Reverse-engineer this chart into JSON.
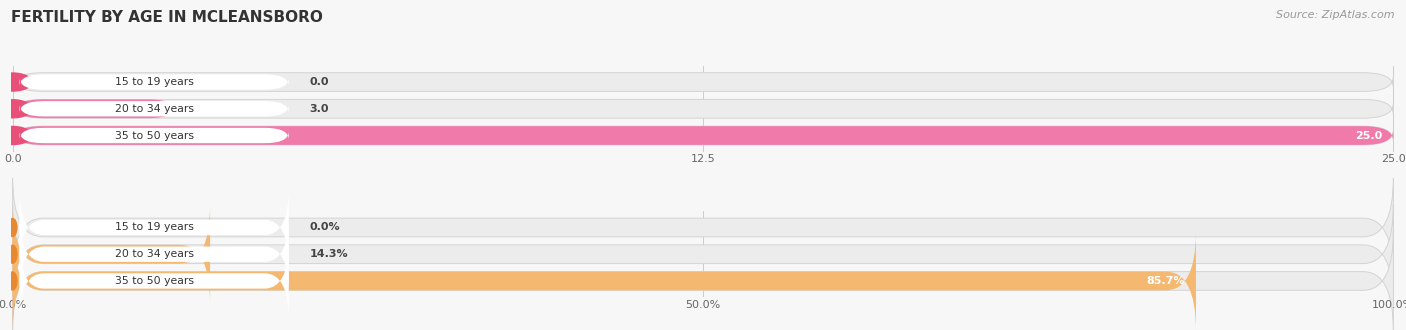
{
  "title": "FERTILITY BY AGE IN MCLEANSBORO",
  "source": "Source: ZipAtlas.com",
  "background_color": "#f7f7f7",
  "top_chart": {
    "categories": [
      "15 to 19 years",
      "20 to 34 years",
      "35 to 50 years"
    ],
    "values": [
      0.0,
      3.0,
      25.0
    ],
    "max_val": 25.0,
    "xticks": [
      0.0,
      12.5,
      25.0
    ],
    "xtick_labels": [
      "0.0",
      "12.5",
      "25.0"
    ],
    "bar_color_main": "#f07aaa",
    "bar_color_dark": "#e8507a",
    "bar_bg_color": "#ececec"
  },
  "bottom_chart": {
    "categories": [
      "15 to 19 years",
      "20 to 34 years",
      "35 to 50 years"
    ],
    "values": [
      0.0,
      14.3,
      85.7
    ],
    "max_val": 100.0,
    "xticks": [
      0.0,
      50.0,
      100.0
    ],
    "xtick_labels": [
      "0.0%",
      "50.0%",
      "100.0%"
    ],
    "bar_color_main": "#f5b870",
    "bar_color_dark": "#e88830",
    "bar_bg_color": "#ececec"
  }
}
